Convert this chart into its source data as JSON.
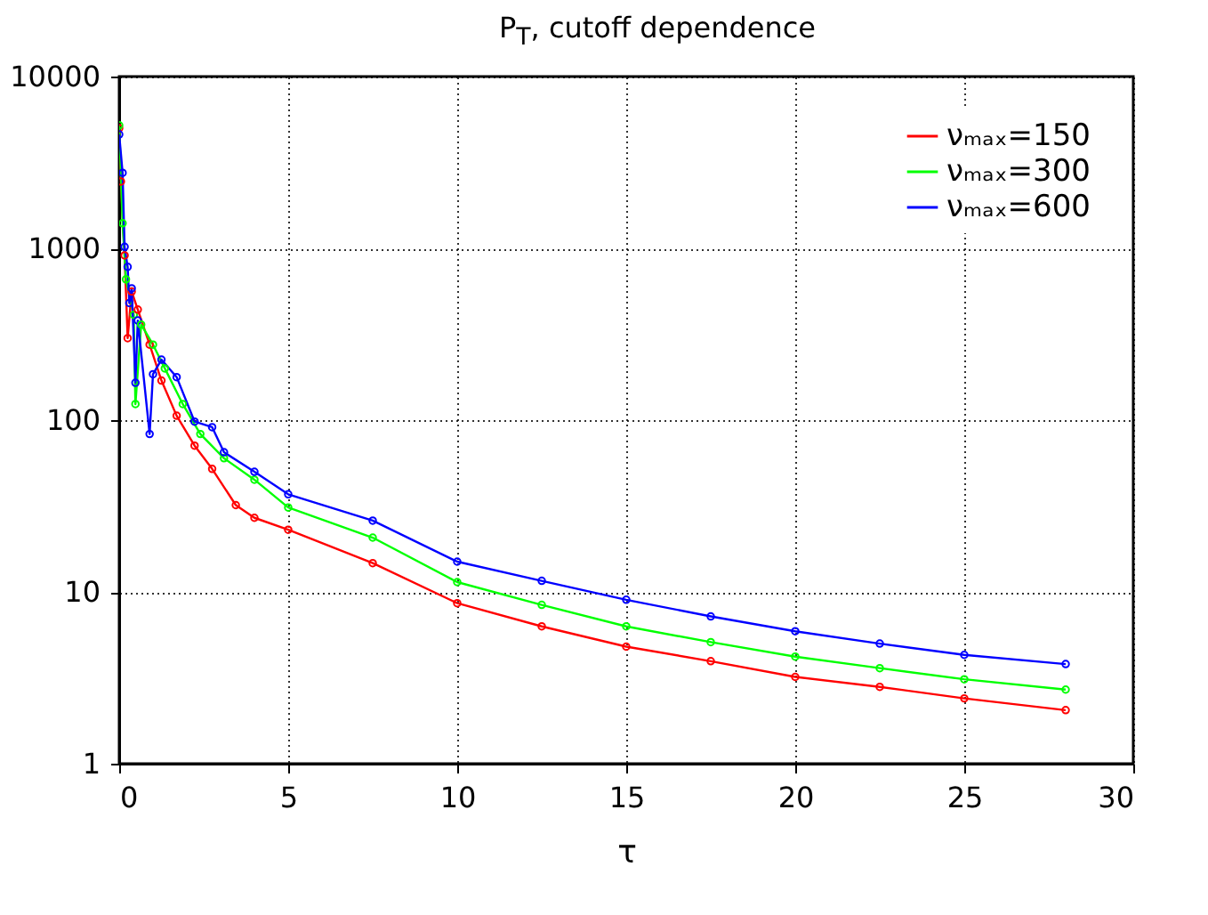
{
  "chart_data": {
    "type": "line",
    "title": "P$_{T}$, cutoff dependence",
    "xlabel": "τ",
    "x": [
      0,
      0.05,
      0.1,
      0.16,
      0.2,
      0.25,
      0.3,
      0.37,
      0.43,
      0.48,
      0.55,
      0.65,
      0.9,
      1.0,
      1.25,
      1.35,
      1.7,
      1.88,
      2.23,
      2.4,
      2.75,
      3.1,
      3.45,
      4.0,
      5,
      7.5,
      10,
      12.5,
      15,
      17.5,
      20,
      22.5,
      25,
      28
    ],
    "series": [
      {
        "name": "νₘₐₓ=150",
        "color": "#ff0000",
        "values": [
          5000,
          2450,
          null,
          910,
          null,
          300,
          null,
          560,
          null,
          null,
          440,
          null,
          275,
          null,
          170,
          null,
          106,
          null,
          71,
          null,
          52,
          null,
          32,
          27,
          23,
          14.7,
          8.6,
          6.3,
          4.8,
          3.95,
          3.2,
          2.8,
          2.4,
          2.05
        ]
      },
      {
        "name": "νₘₐₓ=300",
        "color": "#00ff00",
        "values": [
          5200,
          null,
          1400,
          null,
          660,
          null,
          null,
          null,
          410,
          124,
          null,
          360,
          null,
          275,
          null,
          200,
          null,
          124,
          null,
          83,
          null,
          60,
          null,
          45,
          31,
          20.7,
          11.4,
          8.4,
          6.3,
          5.1,
          4.2,
          3.6,
          3.1,
          2.7
        ]
      },
      {
        "name": "νₘₐₓ=600",
        "color": "#0000ff",
        "values": [
          4600,
          null,
          2750,
          1020,
          null,
          780,
          480,
          585,
          null,
          165,
          380,
          null,
          83,
          185,
          225,
          null,
          178,
          null,
          98,
          null,
          91,
          65,
          null,
          50,
          37,
          26,
          15,
          11.6,
          9,
          7.2,
          5.9,
          5.0,
          4.3,
          3.8
        ]
      }
    ],
    "xlim": [
      0,
      30
    ],
    "xticks": [
      0,
      5,
      10,
      15,
      20,
      25,
      30
    ],
    "ylim": [
      1,
      10000
    ],
    "yticks": [
      1,
      10,
      100,
      1000,
      10000
    ],
    "log": "y",
    "grid": true,
    "legend": "top right",
    "marker": "circle",
    "line_style": "solid"
  }
}
